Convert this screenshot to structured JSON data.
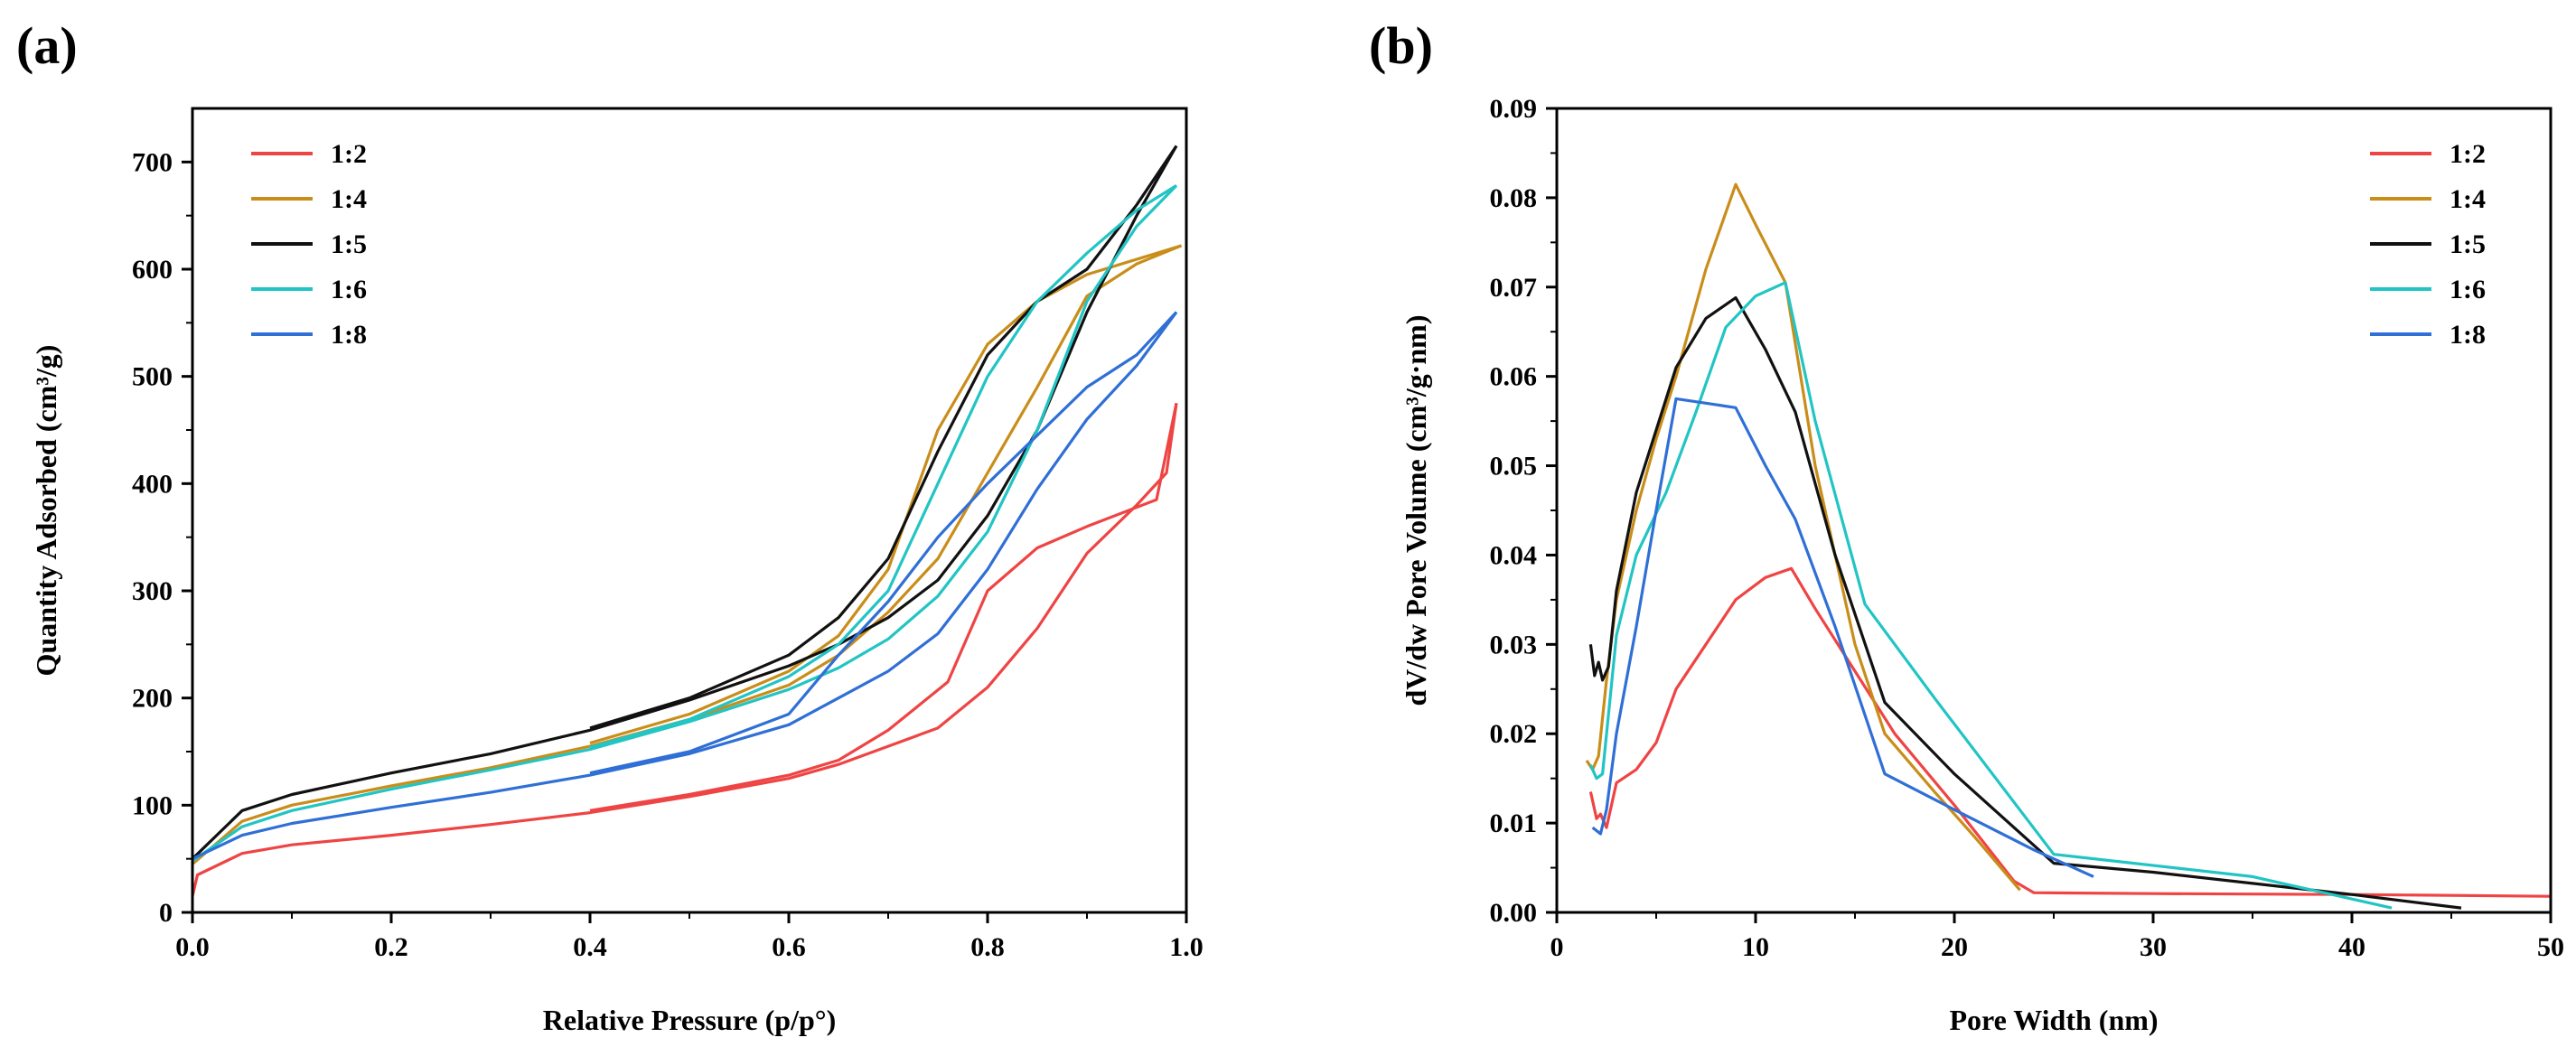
{
  "chart_data": [
    {
      "type": "line",
      "panel_label": "(a)",
      "title": "",
      "xlabel": "Relative Pressure (p/p°)",
      "ylabel": "Quantity Adsorbed (cm³/g)",
      "xlim": [
        0,
        1.0
      ],
      "ylim": [
        0,
        750
      ],
      "xticks": [
        0.0,
        0.2,
        0.4,
        0.6,
        0.8,
        1.0
      ],
      "xtick_labels": [
        "0.0",
        "0.2",
        "0.4",
        "0.6",
        "0.8",
        "1.0"
      ],
      "yticks": [
        0,
        100,
        200,
        300,
        400,
        500,
        600,
        700
      ],
      "ytick_labels": [
        "0",
        "100",
        "200",
        "300",
        "400",
        "500",
        "600",
        "700"
      ],
      "legend_position": "top-left",
      "series": [
        {
          "name": "1:2",
          "color": "#ef4444",
          "adsorption": [
            [
              0.0,
              15
            ],
            [
              0.005,
              35
            ],
            [
              0.05,
              55
            ],
            [
              0.1,
              63
            ],
            [
              0.2,
              72
            ],
            [
              0.3,
              82
            ],
            [
              0.4,
              93
            ],
            [
              0.5,
              108
            ],
            [
              0.6,
              125
            ],
            [
              0.65,
              138
            ],
            [
              0.7,
              155
            ],
            [
              0.75,
              172
            ],
            [
              0.8,
              210
            ],
            [
              0.85,
              265
            ],
            [
              0.9,
              335
            ],
            [
              0.95,
              380
            ],
            [
              0.98,
              410
            ],
            [
              0.99,
              475
            ]
          ],
          "desorption": [
            [
              0.99,
              475
            ],
            [
              0.97,
              385
            ],
            [
              0.9,
              360
            ],
            [
              0.85,
              340
            ],
            [
              0.8,
              300
            ],
            [
              0.76,
              215
            ],
            [
              0.7,
              170
            ],
            [
              0.65,
              142
            ],
            [
              0.6,
              128
            ],
            [
              0.5,
              110
            ],
            [
              0.4,
              95
            ]
          ]
        },
        {
          "name": "1:4",
          "color": "#c98d1a",
          "adsorption": [
            [
              0.0,
              45
            ],
            [
              0.05,
              85
            ],
            [
              0.1,
              100
            ],
            [
              0.2,
              118
            ],
            [
              0.3,
              135
            ],
            [
              0.4,
              155
            ],
            [
              0.5,
              180
            ],
            [
              0.6,
              212
            ],
            [
              0.65,
              240
            ],
            [
              0.7,
              280
            ],
            [
              0.75,
              330
            ],
            [
              0.8,
              410
            ],
            [
              0.85,
              490
            ],
            [
              0.9,
              575
            ],
            [
              0.95,
              605
            ],
            [
              0.995,
              622
            ]
          ],
          "desorption": [
            [
              0.995,
              622
            ],
            [
              0.9,
              595
            ],
            [
              0.85,
              570
            ],
            [
              0.8,
              530
            ],
            [
              0.75,
              450
            ],
            [
              0.7,
              320
            ],
            [
              0.65,
              258
            ],
            [
              0.6,
              225
            ],
            [
              0.5,
              185
            ],
            [
              0.4,
              158
            ]
          ]
        },
        {
          "name": "1:5",
          "color": "#111111",
          "adsorption": [
            [
              0.0,
              50
            ],
            [
              0.05,
              95
            ],
            [
              0.1,
              110
            ],
            [
              0.2,
              130
            ],
            [
              0.3,
              148
            ],
            [
              0.4,
              170
            ],
            [
              0.5,
              198
            ],
            [
              0.6,
              230
            ],
            [
              0.65,
              250
            ],
            [
              0.7,
              275
            ],
            [
              0.75,
              310
            ],
            [
              0.8,
              370
            ],
            [
              0.85,
              450
            ],
            [
              0.9,
              560
            ],
            [
              0.95,
              650
            ],
            [
              0.99,
              715
            ]
          ],
          "desorption": [
            [
              0.99,
              715
            ],
            [
              0.95,
              660
            ],
            [
              0.9,
              600
            ],
            [
              0.85,
              570
            ],
            [
              0.8,
              520
            ],
            [
              0.75,
              430
            ],
            [
              0.7,
              330
            ],
            [
              0.65,
              275
            ],
            [
              0.6,
              240
            ],
            [
              0.5,
              200
            ],
            [
              0.4,
              172
            ]
          ]
        },
        {
          "name": "1:6",
          "color": "#22c4c4",
          "adsorption": [
            [
              0.0,
              48
            ],
            [
              0.05,
              80
            ],
            [
              0.1,
              95
            ],
            [
              0.2,
              115
            ],
            [
              0.3,
              133
            ],
            [
              0.4,
              152
            ],
            [
              0.5,
              178
            ],
            [
              0.6,
              208
            ],
            [
              0.65,
              228
            ],
            [
              0.7,
              255
            ],
            [
              0.75,
              295
            ],
            [
              0.8,
              355
            ],
            [
              0.85,
              450
            ],
            [
              0.9,
              570
            ],
            [
              0.95,
              640
            ],
            [
              0.99,
              678
            ]
          ],
          "desorption": [
            [
              0.99,
              678
            ],
            [
              0.95,
              655
            ],
            [
              0.9,
              615
            ],
            [
              0.85,
              570
            ],
            [
              0.8,
              500
            ],
            [
              0.75,
              400
            ],
            [
              0.7,
              300
            ],
            [
              0.65,
              250
            ],
            [
              0.6,
              220
            ],
            [
              0.5,
              180
            ],
            [
              0.4,
              154
            ]
          ]
        },
        {
          "name": "1:8",
          "color": "#2f6fd6",
          "adsorption": [
            [
              0.0,
              50
            ],
            [
              0.05,
              72
            ],
            [
              0.1,
              83
            ],
            [
              0.2,
              98
            ],
            [
              0.3,
              112
            ],
            [
              0.4,
              128
            ],
            [
              0.5,
              148
            ],
            [
              0.6,
              175
            ],
            [
              0.65,
              200
            ],
            [
              0.7,
              225
            ],
            [
              0.75,
              260
            ],
            [
              0.8,
              320
            ],
            [
              0.85,
              395
            ],
            [
              0.9,
              460
            ],
            [
              0.95,
              510
            ],
            [
              0.99,
              560
            ]
          ],
          "desorption": [
            [
              0.99,
              560
            ],
            [
              0.95,
              520
            ],
            [
              0.9,
              490
            ],
            [
              0.8,
              400
            ],
            [
              0.75,
              350
            ],
            [
              0.7,
              290
            ],
            [
              0.65,
              240
            ],
            [
              0.6,
              185
            ],
            [
              0.5,
              150
            ],
            [
              0.4,
              130
            ]
          ]
        }
      ]
    },
    {
      "type": "line",
      "panel_label": "(b)",
      "title": "",
      "xlabel": "Pore Width (nm)",
      "ylabel": "dV/dw Pore Volume (cm³/g·nm)",
      "xlim": [
        0,
        50
      ],
      "ylim": [
        0,
        0.09
      ],
      "xticks": [
        0,
        10,
        20,
        30,
        40,
        50
      ],
      "xtick_labels": [
        "0",
        "10",
        "20",
        "30",
        "40",
        "50"
      ],
      "yticks": [
        0,
        0.01,
        0.02,
        0.03,
        0.04,
        0.05,
        0.06,
        0.07,
        0.08,
        0.09
      ],
      "ytick_labels": [
        "0.00",
        "0.01",
        "0.02",
        "0.03",
        "0.04",
        "0.05",
        "0.06",
        "0.07",
        "0.08",
        "0.09"
      ],
      "legend_position": "top-right",
      "series": [
        {
          "name": "1:2",
          "color": "#ef4444",
          "points": [
            [
              1.7,
              0.0135
            ],
            [
              2.0,
              0.0105
            ],
            [
              2.2,
              0.011
            ],
            [
              2.5,
              0.0095
            ],
            [
              3.0,
              0.0145
            ],
            [
              4.0,
              0.016
            ],
            [
              5.0,
              0.019
            ],
            [
              6.0,
              0.025
            ],
            [
              7.5,
              0.03
            ],
            [
              9.0,
              0.035
            ],
            [
              10.5,
              0.0375
            ],
            [
              11.8,
              0.0385
            ],
            [
              13.0,
              0.034
            ],
            [
              15.0,
              0.027
            ],
            [
              17.0,
              0.02
            ],
            [
              20.0,
              0.012
            ],
            [
              23.0,
              0.0035
            ],
            [
              24.0,
              0.0022
            ],
            [
              30.0,
              0.0021
            ],
            [
              40.0,
              0.002
            ],
            [
              50.0,
              0.0018
            ]
          ]
        },
        {
          "name": "1:4",
          "color": "#c98d1a",
          "points": [
            [
              1.5,
              0.017
            ],
            [
              1.8,
              0.016
            ],
            [
              2.1,
              0.0175
            ],
            [
              2.5,
              0.026
            ],
            [
              3.0,
              0.035
            ],
            [
              4.0,
              0.045
            ],
            [
              5.0,
              0.053
            ],
            [
              6.0,
              0.06
            ],
            [
              7.5,
              0.072
            ],
            [
              9.0,
              0.0815
            ],
            [
              10.0,
              0.077
            ],
            [
              11.5,
              0.0705
            ],
            [
              13.0,
              0.05
            ],
            [
              15.0,
              0.03
            ],
            [
              16.5,
              0.02
            ],
            [
              19.0,
              0.0135
            ],
            [
              21.0,
              0.0085
            ],
            [
              23.3,
              0.0025
            ]
          ]
        },
        {
          "name": "1:5",
          "color": "#111111",
          "points": [
            [
              1.7,
              0.03
            ],
            [
              1.9,
              0.0265
            ],
            [
              2.1,
              0.028
            ],
            [
              2.3,
              0.026
            ],
            [
              2.6,
              0.0275
            ],
            [
              3.0,
              0.036
            ],
            [
              4.0,
              0.047
            ],
            [
              5.0,
              0.054
            ],
            [
              6.0,
              0.061
            ],
            [
              7.5,
              0.0665
            ],
            [
              9.0,
              0.0688
            ],
            [
              10.5,
              0.063
            ],
            [
              12.0,
              0.056
            ],
            [
              14.0,
              0.04
            ],
            [
              16.5,
              0.0235
            ],
            [
              20.0,
              0.0155
            ],
            [
              25.0,
              0.0055
            ],
            [
              30.0,
              0.0045
            ],
            [
              40.0,
              0.002
            ],
            [
              45.5,
              0.0005
            ]
          ]
        },
        {
          "name": "1:6",
          "color": "#22c4c4",
          "points": [
            [
              1.7,
              0.0165
            ],
            [
              2.0,
              0.015
            ],
            [
              2.3,
              0.0155
            ],
            [
              3.0,
              0.031
            ],
            [
              4.0,
              0.04
            ],
            [
              5.5,
              0.047
            ],
            [
              7.0,
              0.056
            ],
            [
              8.5,
              0.0655
            ],
            [
              10.0,
              0.069
            ],
            [
              11.5,
              0.0705
            ],
            [
              13.0,
              0.055
            ],
            [
              15.5,
              0.0345
            ],
            [
              19.0,
              0.024
            ],
            [
              25.0,
              0.0065
            ],
            [
              35.0,
              0.004
            ],
            [
              42.0,
              0.0005
            ]
          ]
        },
        {
          "name": "1:8",
          "color": "#2f6fd6",
          "points": [
            [
              1.8,
              0.0095
            ],
            [
              2.2,
              0.0088
            ],
            [
              2.5,
              0.0115
            ],
            [
              3.0,
              0.02
            ],
            [
              4.0,
              0.032
            ],
            [
              5.0,
              0.045
            ],
            [
              6.0,
              0.0575
            ],
            [
              7.5,
              0.057
            ],
            [
              9.0,
              0.0565
            ],
            [
              10.5,
              0.05
            ],
            [
              12.0,
              0.044
            ],
            [
              14.0,
              0.032
            ],
            [
              16.5,
              0.0155
            ],
            [
              20.0,
              0.0115
            ],
            [
              24.0,
              0.007
            ],
            [
              27.0,
              0.004
            ]
          ]
        }
      ]
    }
  ]
}
